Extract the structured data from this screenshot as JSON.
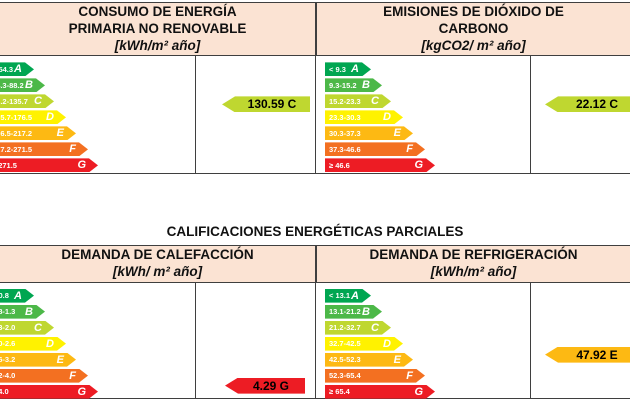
{
  "section_title": "CALIFICACIONES ENERGÉTICAS PARCIALES",
  "colors": {
    "class_A": "#00a651",
    "class_B": "#4cb848",
    "class_C": "#bfd730",
    "class_D": "#fff200",
    "class_E": "#fdb913",
    "class_F": "#f37021",
    "class_G": "#ed1c24",
    "header_background": "#fbe3d3",
    "border": "#3f3f3f"
  },
  "chart_data": [
    {
      "type": "bar",
      "panel": "consumo-energia-primaria-no-renovable",
      "title_lines": [
        "CONSUMO DE ENERGÍA",
        "PRIMARIA NO RENOVABLE"
      ],
      "unit": "[kWh/m² año]",
      "categories": [
        "A",
        "B",
        "C",
        "D",
        "E",
        "F",
        "G"
      ],
      "scale": [
        {
          "class": "A",
          "label": "< 54.3"
        },
        {
          "class": "B",
          "label": "54.3-88.2"
        },
        {
          "class": "C",
          "label": "88.2-135.7"
        },
        {
          "class": "D",
          "label": "135.7-176.5"
        },
        {
          "class": "E",
          "label": "176.5-217.2"
        },
        {
          "class": "F",
          "label": "217.2-271.5"
        },
        {
          "class": "G",
          "label": "≥ 271.5"
        }
      ],
      "value": 130.59,
      "value_class": "C",
      "value_label": "130.59 C"
    },
    {
      "type": "bar",
      "panel": "emisiones-dioxido-carbono",
      "title_lines": [
        "EMISIONES DE DIÓXIDO DE",
        "CARBONO"
      ],
      "unit": "[kgCO2/ m² año]",
      "categories": [
        "A",
        "B",
        "C",
        "D",
        "E",
        "F",
        "G"
      ],
      "scale": [
        {
          "class": "A",
          "label": "< 9.3"
        },
        {
          "class": "B",
          "label": "9.3-15.2"
        },
        {
          "class": "C",
          "label": "15.2-23.3"
        },
        {
          "class": "D",
          "label": "23.3-30.3"
        },
        {
          "class": "E",
          "label": "30.3-37.3"
        },
        {
          "class": "F",
          "label": "37.3-46.6"
        },
        {
          "class": "G",
          "label": "≥ 46.6"
        }
      ],
      "value": 22.12,
      "value_class": "C",
      "value_label": "22.12 C"
    },
    {
      "type": "bar",
      "panel": "demanda-calefaccion",
      "title_lines": [
        "DEMANDA DE CALEFACCIÓN"
      ],
      "unit": "[kWh/ m² año]",
      "categories": [
        "A",
        "B",
        "C",
        "D",
        "E",
        "F",
        "G"
      ],
      "scale": [
        {
          "class": "A",
          "label": "< 0.8"
        },
        {
          "class": "B",
          "label": "0.8-1.3"
        },
        {
          "class": "C",
          "label": "1.3-2.0"
        },
        {
          "class": "D",
          "label": "2.0-2.6"
        },
        {
          "class": "E",
          "label": "2.6-3.2"
        },
        {
          "class": "F",
          "label": "3.2-4.0"
        },
        {
          "class": "G",
          "label": "≥ 4.0"
        }
      ],
      "value": 4.29,
      "value_class": "G",
      "value_label": "4.29 G"
    },
    {
      "type": "bar",
      "panel": "demanda-refrigeracion",
      "title_lines": [
        "DEMANDA DE REFRIGERACIÓN"
      ],
      "unit": "[kWh/m² año]",
      "categories": [
        "A",
        "B",
        "C",
        "D",
        "E",
        "F",
        "G"
      ],
      "scale": [
        {
          "class": "A",
          "label": "< 13.1"
        },
        {
          "class": "B",
          "label": "13.1-21.2"
        },
        {
          "class": "C",
          "label": "21.2-32.7"
        },
        {
          "class": "D",
          "label": "32.7-42.5"
        },
        {
          "class": "E",
          "label": "42.5-52.3"
        },
        {
          "class": "F",
          "label": "52.3-65.4"
        },
        {
          "class": "G",
          "label": "≥ 65.4"
        }
      ],
      "value": 47.92,
      "value_class": "E",
      "value_label": "47.92 E"
    }
  ]
}
